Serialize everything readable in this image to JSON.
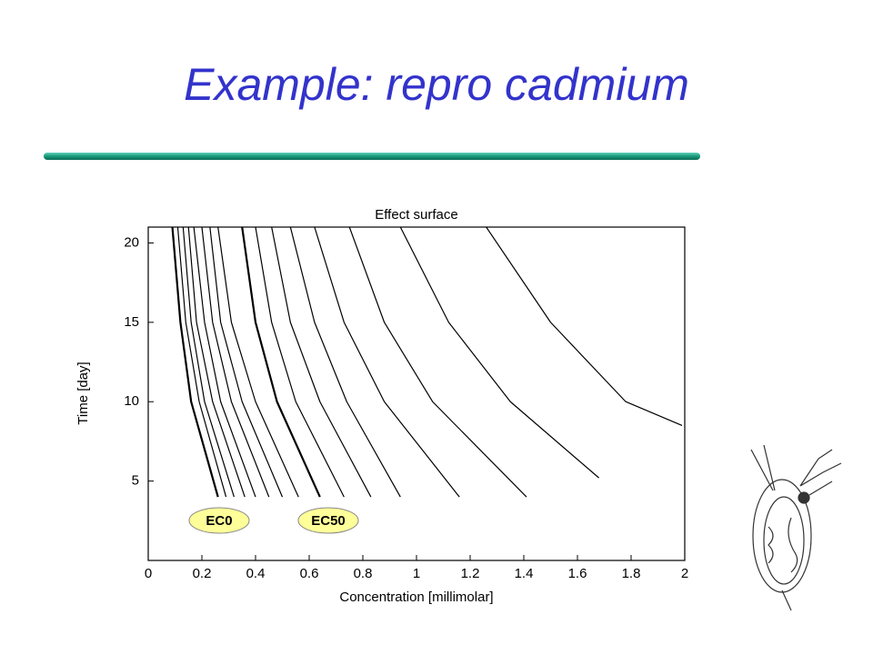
{
  "slide_title": "Example: repro cadmium",
  "chart_data": {
    "type": "line",
    "title": "Effect surface",
    "xlabel": "Concentration [millimolar]",
    "ylabel": "Time [day]",
    "xlim": [
      0,
      2
    ],
    "xticks": [
      0,
      0.2,
      0.4,
      0.6,
      0.8,
      1,
      1.2,
      1.4,
      1.6,
      1.8,
      2
    ],
    "ylim": [
      0,
      21
    ],
    "yticks": [
      5,
      10,
      15,
      20
    ],
    "series": [
      {
        "color": "#000000",
        "line_width": 2.2,
        "x": [
          0.09,
          0.12,
          0.16,
          0.26
        ],
        "values": [
          21,
          15,
          10,
          4
        ]
      },
      {
        "color": "#000000",
        "line_width": 1.2,
        "x": [
          0.11,
          0.14,
          0.19,
          0.29
        ],
        "values": [
          21,
          15,
          10,
          4
        ]
      },
      {
        "color": "#000000",
        "line_width": 1.2,
        "x": [
          0.13,
          0.16,
          0.21,
          0.32
        ],
        "values": [
          21,
          15,
          10,
          4
        ]
      },
      {
        "color": "#000000",
        "line_width": 1.2,
        "x": [
          0.15,
          0.18,
          0.24,
          0.36
        ],
        "values": [
          21,
          15,
          10,
          4
        ]
      },
      {
        "color": "#000000",
        "line_width": 1.2,
        "x": [
          0.17,
          0.21,
          0.27,
          0.4
        ],
        "values": [
          21,
          15,
          10,
          4
        ]
      },
      {
        "color": "#000000",
        "line_width": 1.2,
        "x": [
          0.2,
          0.24,
          0.31,
          0.45
        ],
        "values": [
          21,
          15,
          10,
          4
        ]
      },
      {
        "color": "#000000",
        "line_width": 1.2,
        "x": [
          0.23,
          0.27,
          0.35,
          0.5
        ],
        "values": [
          21,
          15,
          10,
          4
        ]
      },
      {
        "color": "#000000",
        "line_width": 1.2,
        "x": [
          0.26,
          0.31,
          0.4,
          0.56
        ],
        "values": [
          21,
          15,
          10,
          4
        ]
      },
      {
        "color": "#000000",
        "line_width": 2.2,
        "x": [
          0.35,
          0.4,
          0.48,
          0.64
        ],
        "values": [
          21,
          15,
          10,
          4
        ]
      },
      {
        "color": "#000000",
        "line_width": 1.2,
        "x": [
          0.4,
          0.46,
          0.55,
          0.73
        ],
        "values": [
          21,
          15,
          10,
          4
        ]
      },
      {
        "color": "#000000",
        "line_width": 1.2,
        "x": [
          0.46,
          0.53,
          0.64,
          0.83
        ],
        "values": [
          21,
          15,
          10,
          4
        ]
      },
      {
        "color": "#000000",
        "line_width": 1.2,
        "x": [
          0.53,
          0.62,
          0.74,
          0.94
        ],
        "values": [
          21,
          15,
          10,
          4
        ]
      },
      {
        "color": "#000000",
        "line_width": 1.2,
        "x": [
          0.62,
          0.73,
          0.88,
          1.16
        ],
        "values": [
          21,
          15,
          10,
          4
        ]
      },
      {
        "color": "#000000",
        "line_width": 1.2,
        "x": [
          0.75,
          0.88,
          1.06,
          1.41
        ],
        "values": [
          21,
          15,
          10,
          4
        ]
      },
      {
        "color": "#000000",
        "line_width": 1.2,
        "x": [
          0.94,
          1.12,
          1.35,
          1.68
        ],
        "values": [
          21,
          15,
          10,
          5.2
        ]
      },
      {
        "color": "#000000",
        "line_width": 1.2,
        "x": [
          1.26,
          1.5,
          1.78,
          1.99
        ],
        "values": [
          21,
          15,
          10,
          8.5
        ]
      }
    ],
    "annotations": [
      {
        "text": "EC0"
      },
      {
        "text": "EC50"
      }
    ]
  }
}
